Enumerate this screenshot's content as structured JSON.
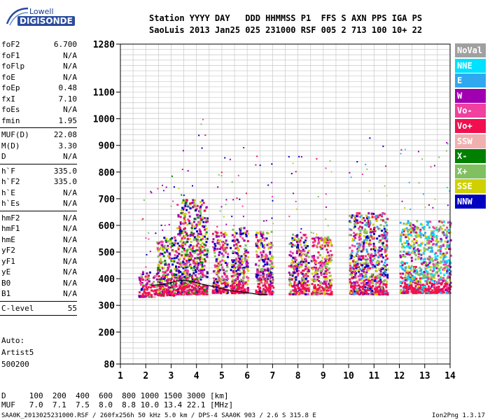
{
  "logo": {
    "brand": "Lowell",
    "product": "DIGISONDE"
  },
  "header": {
    "line1": "Station YYYY DAY   DDD HHMMSS P1  FFS S AXN PPS IGA PS",
    "line2": "SaoLuis 2013 Jan25 025 231000 RSF 005 2 713 100 10+ 22"
  },
  "params_groups": [
    [
      [
        "foF2",
        "6.700"
      ],
      [
        "foF1",
        "N/A"
      ],
      [
        "foFlp",
        "N/A"
      ],
      [
        "foE",
        "N/A"
      ],
      [
        "foEp",
        "0.48"
      ],
      [
        "fxI",
        "7.10"
      ],
      [
        "foEs",
        "N/A"
      ],
      [
        "fmin",
        "1.95"
      ]
    ],
    [
      [
        "MUF(D)",
        "22.08"
      ],
      [
        "M(D)",
        "3.30"
      ],
      [
        "D",
        "N/A"
      ]
    ],
    [
      [
        "h`F",
        "335.0"
      ],
      [
        "h`F2",
        "335.0"
      ],
      [
        "h`E",
        "N/A"
      ],
      [
        "h`Es",
        "N/A"
      ]
    ],
    [
      [
        "hmF2",
        "N/A"
      ],
      [
        "hmF1",
        "N/A"
      ],
      [
        "hmE",
        "N/A"
      ],
      [
        "yF2",
        "N/A"
      ],
      [
        "yF1",
        "N/A"
      ],
      [
        "yE",
        "N/A"
      ],
      [
        "B0",
        "N/A"
      ],
      [
        "B1",
        "N/A"
      ]
    ],
    [
      [
        "C-level",
        "55"
      ]
    ]
  ],
  "auto_block": [
    "Auto:",
    "Artist5",
    "500200"
  ],
  "mufd_table": {
    "d_row": "D     100  200  400  600  800 1000 1500 3000 [km]",
    "muf_row": "MUF   7.0  7.1  7.5  8.0  8.8 10.0 13.4 22.1 [MHz]"
  },
  "footer": {
    "left": "SAA0K_2013025231000.RSF / 260fx256h 50 kHz 5.0 km / DPS-4 SAA0K 903 / 2.6 S 315.8 E",
    "right": "Ion2Png 1.3.17"
  },
  "legend": [
    {
      "label": "NoVal",
      "color": "#a0a0a0"
    },
    {
      "label": "NNE",
      "color": "#00e0ff"
    },
    {
      "label": "E",
      "color": "#30a8f0"
    },
    {
      "label": "W",
      "color": "#a000b0"
    },
    {
      "label": "Vo-",
      "color": "#f040a0"
    },
    {
      "label": "Vo+",
      "color": "#f01050"
    },
    {
      "label": "SSW",
      "color": "#f0b0b0"
    },
    {
      "label": "X-",
      "color": "#008000"
    },
    {
      "label": "X+",
      "color": "#80c060"
    },
    {
      "label": "SSE",
      "color": "#d0d000"
    },
    {
      "label": "NNW",
      "color": "#0000c0"
    }
  ],
  "chart_data": {
    "type": "scatter",
    "xlabel": "",
    "ylabel": "",
    "xlim": [
      1,
      14
    ],
    "ylim": [
      80,
      1280
    ],
    "x_ticks": [
      1,
      2,
      3,
      4,
      5,
      6,
      7,
      8,
      9,
      10,
      11,
      12,
      13,
      14
    ],
    "y_ticks": [
      80,
      200,
      300,
      400,
      500,
      600,
      700,
      800,
      900,
      1000,
      1100,
      1280
    ],
    "grid": true,
    "echo_blocks": [
      {
        "x": [
          1.7,
          2.4
        ],
        "y": [
          335,
          430
        ],
        "colors": [
          "Vo+",
          "Vo-",
          "SSW",
          "X+",
          "NNW",
          "W"
        ]
      },
      {
        "x": [
          2.4,
          3.2
        ],
        "y": [
          340,
          560
        ],
        "colors": [
          "Vo+",
          "W",
          "SSE",
          "X+",
          "NNW",
          "Vo-",
          "X-"
        ]
      },
      {
        "x": [
          3.2,
          4.4
        ],
        "y": [
          345,
          700
        ],
        "colors": [
          "W",
          "SSE",
          "NNW",
          "Vo-",
          "X+",
          "Vo+",
          "X-"
        ]
      },
      {
        "x": [
          4.6,
          5.2
        ],
        "y": [
          350,
          580
        ],
        "colors": [
          "W",
          "SSE",
          "NNW",
          "Vo-",
          "X+",
          "Vo+"
        ]
      },
      {
        "x": [
          5.3,
          6.0
        ],
        "y": [
          350,
          600
        ],
        "colors": [
          "W",
          "SSE",
          "Vo+",
          "X+",
          "NNW",
          "Vo-"
        ]
      },
      {
        "x": [
          6.3,
          7.0
        ],
        "y": [
          345,
          580
        ],
        "colors": [
          "W",
          "SSE",
          "Vo+",
          "Vo-",
          "X+",
          "NNW"
        ]
      },
      {
        "x": [
          7.6,
          8.4
        ],
        "y": [
          345,
          570
        ],
        "colors": [
          "Vo+",
          "SSE",
          "W",
          "Vo-",
          "X+",
          "NNW"
        ]
      },
      {
        "x": [
          8.5,
          9.3
        ],
        "y": [
          345,
          560
        ],
        "colors": [
          "Vo+",
          "SSE",
          "W",
          "Vo-",
          "X+"
        ]
      },
      {
        "x": [
          10.0,
          11.5
        ],
        "y": [
          345,
          650
        ],
        "colors": [
          "Vo+",
          "Vo-",
          "W",
          "SSE",
          "X+",
          "NNW",
          "E"
        ]
      },
      {
        "x": [
          12.0,
          13.0
        ],
        "y": [
          350,
          620
        ],
        "colors": [
          "NNE",
          "E",
          "SSE",
          "Vo+",
          "X+",
          "W"
        ]
      },
      {
        "x": [
          13.0,
          14.0
        ],
        "y": [
          350,
          620
        ],
        "colors": [
          "NNE",
          "E",
          "Vo-",
          "SSE",
          "W",
          "X+"
        ]
      }
    ],
    "trace": {
      "name": "",
      "color": "#000000",
      "x": [
        2.2,
        2.6,
        3.0,
        3.4,
        3.8,
        4.2,
        4.6,
        5.0,
        5.4,
        5.8,
        6.2,
        6.5,
        6.8
      ],
      "y": [
        375,
        378,
        385,
        395,
        390,
        380,
        372,
        362,
        355,
        350,
        345,
        340,
        340
      ]
    }
  }
}
